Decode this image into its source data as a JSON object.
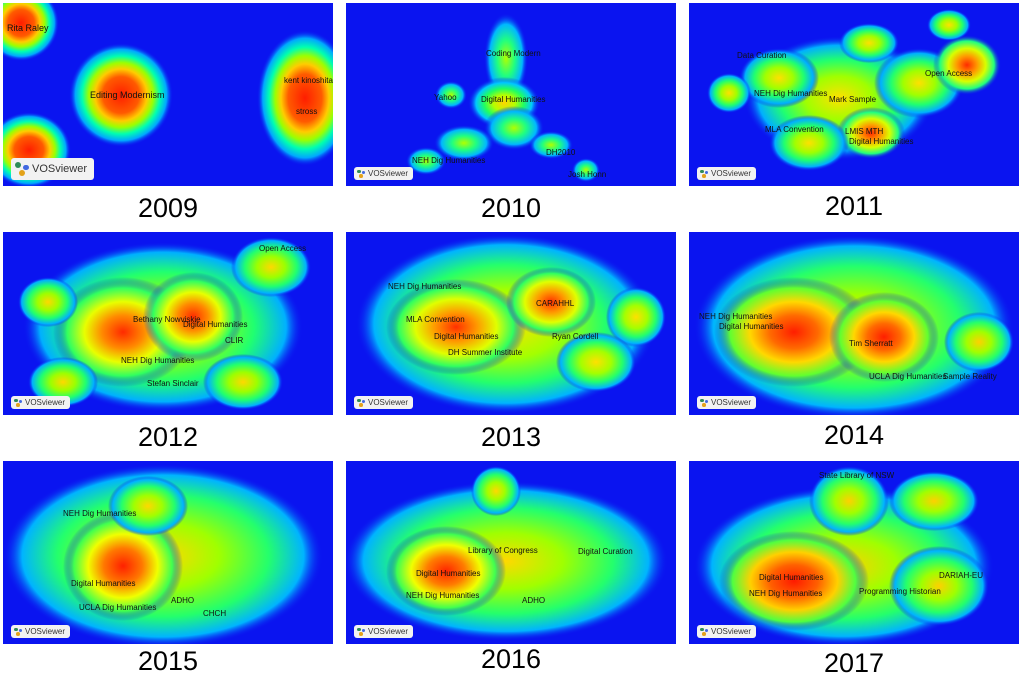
{
  "badge_text": "VOSviewer",
  "colors": {
    "background": "#0a14f0",
    "low": "#00d4ff",
    "mid": "#2cff2c",
    "high": "#ffee00",
    "peak": "#ff2200"
  },
  "panels": [
    {
      "year": "2009",
      "labels": [
        "Rita Raley",
        "Editing Modernism",
        "kent kinoshita",
        "stross"
      ]
    },
    {
      "year": "2010",
      "labels": [
        "Digital Humanities",
        "NEH Dig Humanities",
        "Coding Modern",
        "DH2010",
        "Yahoo",
        "Josh Honn"
      ]
    },
    {
      "year": "2011",
      "labels": [
        "NEH Dig Humanities",
        "Data Curation",
        "Digital Humanities",
        "Open Access",
        "LMIS MTH",
        "Mark Sample",
        "MLA Convention"
      ]
    },
    {
      "year": "2012",
      "labels": [
        "Digital Humanities",
        "Open Access",
        "NEH Dig Humanities",
        "Stefan Sinclair",
        "CLIR",
        "Bethany Nowviskie"
      ]
    },
    {
      "year": "2013",
      "labels": [
        "Digital Humanities",
        "NEH Dig Humanities",
        "CARAHHL",
        "Ryan Cordell",
        "DH Summer Institute",
        "MLA Convention"
      ]
    },
    {
      "year": "2014",
      "labels": [
        "NEH Dig Humanities",
        "Digital Humanities",
        "Tim Sherratt",
        "UCLA Dig Humanities",
        "Sample Reality"
      ]
    },
    {
      "year": "2015",
      "labels": [
        "Digital Humanities",
        "NEH Dig Humanities",
        "UCLA Dig Humanities",
        "ADHO",
        "CHCH"
      ]
    },
    {
      "year": "2016",
      "labels": [
        "Digital Humanities",
        "NEH Dig Humanities",
        "Library of Congress",
        "ADHO",
        "Digital Curation"
      ]
    },
    {
      "year": "2017",
      "labels": [
        "State Library of NSW",
        "Digital Humanities",
        "NEH Dig Humanities",
        "Programming Historian",
        "DARIAH-EU"
      ]
    }
  ]
}
